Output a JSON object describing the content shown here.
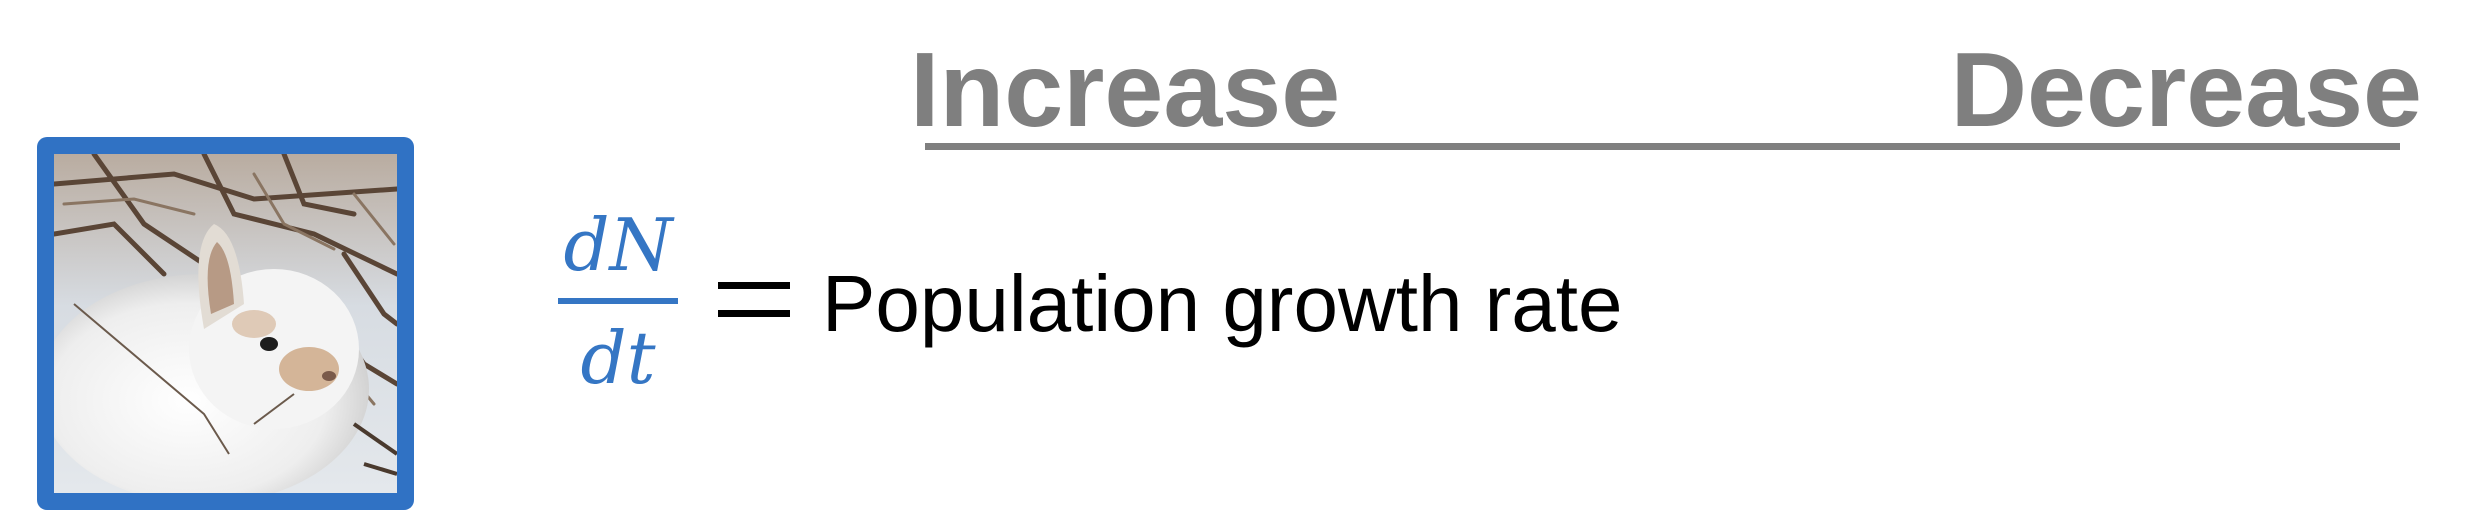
{
  "headings": {
    "increase": "Increase",
    "decrease": "Decrease"
  },
  "equation": {
    "numerator": "dN",
    "denominator": "dt",
    "definition": "Population growth rate"
  },
  "colors": {
    "heading": "#7f7f7f",
    "accent_blue": "#3576c4",
    "photo_frame": "#3072c4",
    "text": "#000000"
  },
  "photo": {
    "icon": "snowshoe-hare-photo"
  }
}
